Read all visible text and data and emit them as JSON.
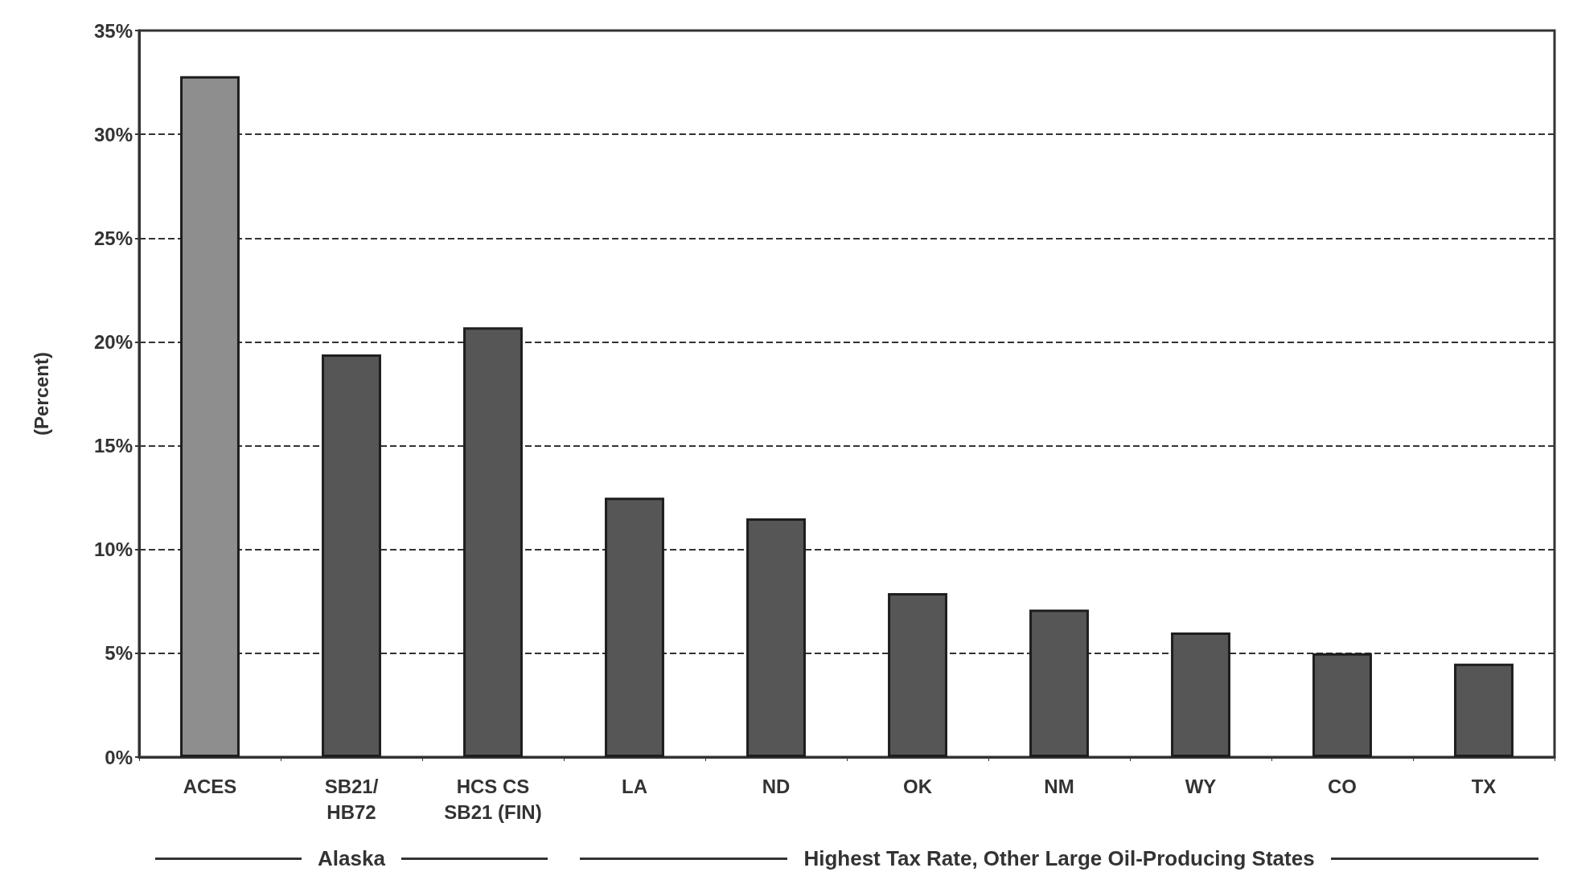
{
  "chart_data": {
    "type": "bar",
    "ylabel": "(Percent)",
    "categories": [
      "ACES",
      "SB21/\nHB72",
      "HCS CS\nSB21 (FIN)",
      "LA",
      "ND",
      "OK",
      "NM",
      "WY",
      "CO",
      "TX"
    ],
    "values": [
      32.8,
      19.4,
      20.7,
      12.5,
      11.5,
      7.9,
      7.1,
      6.0,
      5.0,
      4.5
    ],
    "colors": [
      "#8e8e8e",
      "#565656",
      "#565656",
      "#565656",
      "#565656",
      "#565656",
      "#565656",
      "#565656",
      "#565656",
      "#565656"
    ],
    "ylim": [
      0,
      35
    ],
    "yticks": [
      {
        "value": 0,
        "label": "0%"
      },
      {
        "value": 5,
        "label": "5%"
      },
      {
        "value": 10,
        "label": "10%"
      },
      {
        "value": 15,
        "label": "15%"
      },
      {
        "value": 20,
        "label": "20%"
      },
      {
        "value": 25,
        "label": "25%"
      },
      {
        "value": 30,
        "label": "30%"
      },
      {
        "value": 35,
        "label": "35%"
      }
    ],
    "grid": "y",
    "annotations": [
      "Alaska",
      "Highest Tax Rate, Other Large Oil-Producing States"
    ]
  }
}
